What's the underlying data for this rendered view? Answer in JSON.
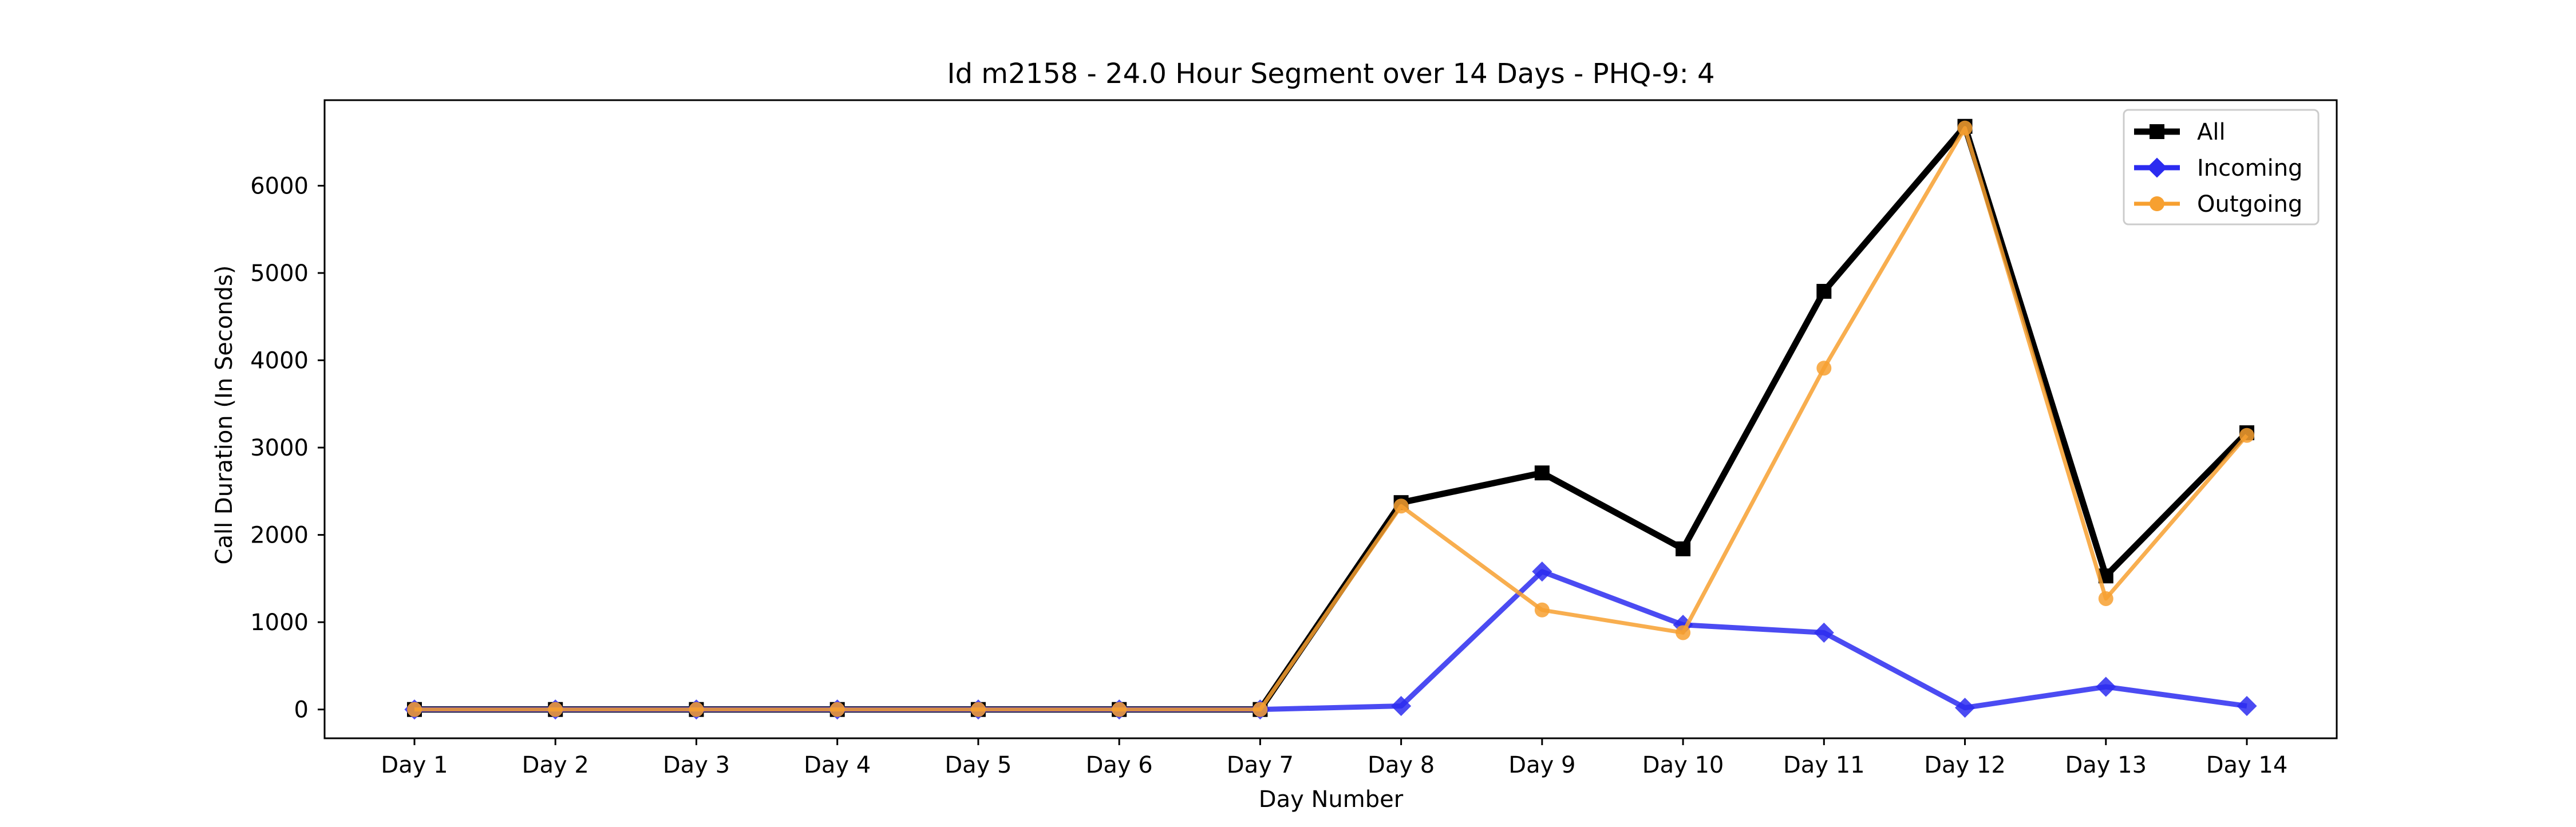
{
  "chart_data": {
    "type": "line",
    "title": "Id m2158 - 24.0 Hour Segment over 14 Days - PHQ-9: 4",
    "xlabel": "Day Number",
    "ylabel": "Call Duration (In Seconds)",
    "categories": [
      "Day 1",
      "Day 2",
      "Day 3",
      "Day 4",
      "Day 5",
      "Day 6",
      "Day 7",
      "Day 8",
      "Day 9",
      "Day 10",
      "Day 11",
      "Day 12",
      "Day 13",
      "Day 14"
    ],
    "y_ticks": [
      0,
      1000,
      2000,
      3000,
      4000,
      5000,
      6000
    ],
    "ylim": [
      -330,
      6980
    ],
    "grid": false,
    "legend_position": "top-right",
    "series": [
      {
        "name": "All",
        "color": "#000000",
        "marker": "square",
        "values": [
          0,
          0,
          0,
          0,
          0,
          0,
          0,
          2370,
          2710,
          1840,
          4790,
          6680,
          1530,
          3170
        ]
      },
      {
        "name": "Incoming",
        "color": "#2b2bf0",
        "marker": "diamond",
        "values": [
          0,
          0,
          0,
          0,
          0,
          0,
          0,
          40,
          1580,
          970,
          880,
          20,
          260,
          40
        ]
      },
      {
        "name": "Outgoing",
        "color": "#f7a030",
        "marker": "circle",
        "values": [
          0,
          0,
          0,
          0,
          0,
          0,
          0,
          2330,
          1140,
          880,
          3910,
          6660,
          1270,
          3140
        ]
      }
    ]
  }
}
